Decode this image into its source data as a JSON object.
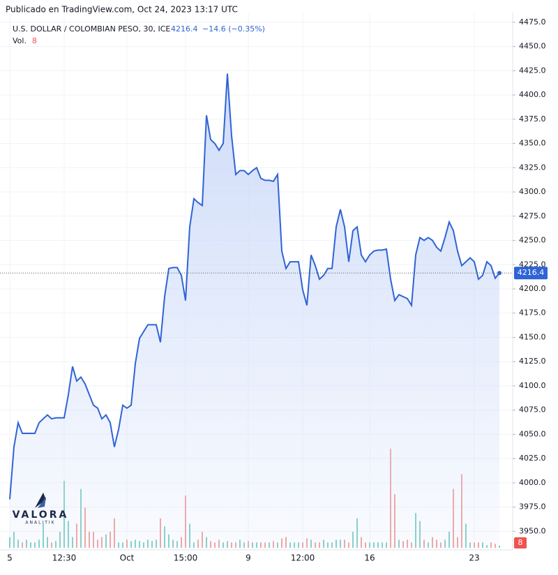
{
  "source": "Publicado en TradingView.com, Oct 24, 2023 13:17 UTC",
  "logo": {
    "name": "VALORA",
    "tagline": "ANALITIK"
  },
  "chart_data": {
    "type": "line",
    "change": "−14.6 (−0.35%)",
    "categories": [
      "5",
      null,
      null,
      null,
      null,
      null,
      null,
      null,
      null,
      null,
      null,
      null,
      null,
      "12:30",
      null,
      null,
      null,
      null,
      null,
      null,
      null,
      null,
      null,
      null,
      null,
      null,
      null,
      null,
      "Oct",
      null,
      null,
      null,
      null,
      null,
      null,
      null,
      null,
      null,
      null,
      null,
      null,
      null,
      "15:00",
      null,
      null,
      null,
      null,
      null,
      null,
      null,
      null,
      null,
      null,
      null,
      null,
      null,
      null,
      "9",
      null,
      null,
      null,
      null,
      null,
      null,
      null,
      null,
      null,
      null,
      null,
      null,
      "12:00",
      null,
      null,
      null,
      null,
      null,
      null,
      null,
      null,
      null,
      null,
      null,
      null,
      null,
      null,
      null,
      "16",
      null,
      null,
      null,
      null,
      null,
      null,
      null,
      null,
      null,
      null,
      null,
      null,
      null,
      null,
      null,
      null,
      null,
      null,
      null,
      null,
      null,
      null,
      null,
      null,
      "23",
      null,
      null,
      null,
      null,
      null,
      null
    ],
    "series": [
      {
        "name": "U.S. DOLLAR / COLOMBIAN PESO, 30, ICE",
        "color": "#2f63d6",
        "fill": "#dbe5fb",
        "values": [
          3983,
          4037,
          4062,
          4051,
          4051,
          4051,
          4051,
          4062,
          4066,
          4070,
          4066,
          4067,
          4067,
          4067,
          4091,
          4120,
          4105,
          4109,
          4102,
          4091,
          4080,
          4077,
          4066,
          4070,
          4062,
          4037,
          4055,
          4080,
          4077,
          4080,
          4123,
          4149,
          4156,
          4163,
          4163,
          4163,
          4145,
          4192,
          4221,
          4222,
          4222,
          4214,
          4188,
          4264,
          4293,
          4289,
          4286,
          4379,
          4354,
          4350,
          4343,
          4350,
          4422,
          4358,
          4318,
          4322,
          4322,
          4318,
          4322,
          4325,
          4314,
          4312,
          4312,
          4311,
          4318,
          4239,
          4221,
          4228,
          4228,
          4228,
          4199,
          4183,
          4235,
          4224,
          4210,
          4214,
          4221,
          4221,
          4264,
          4282,
          4264,
          4228,
          4260,
          4264,
          4235,
          4228,
          4235,
          4239,
          4240,
          4240,
          4241,
          4210,
          4188,
          4194,
          4192,
          4190,
          4183,
          4235,
          4253,
          4250,
          4253,
          4250,
          4243,
          4239,
          4253,
          4269,
          4260,
          4239,
          4224,
          4228,
          4232,
          4228,
          4210,
          4214,
          4228,
          4224,
          4211,
          4216.4
        ]
      },
      {
        "name": "Vol.",
        "axis": "y2",
        "up_color": "#7fcfc7",
        "down_color": "#f2a19f",
        "color": "#ef5350",
        "values": [
          40,
          60,
          30,
          20,
          30,
          20,
          20,
          30,
          90,
          40,
          20,
          25,
          60,
          250,
          100,
          40,
          90,
          220,
          150,
          60,
          60,
          30,
          40,
          50,
          60,
          110,
          20,
          20,
          30,
          25,
          30,
          25,
          20,
          30,
          25,
          30,
          110,
          80,
          50,
          30,
          25,
          40,
          195,
          90,
          20,
          30,
          60,
          40,
          25,
          20,
          30,
          20,
          25,
          20,
          20,
          30,
          20,
          25,
          20,
          20,
          20,
          20,
          20,
          25,
          20,
          35,
          40,
          20,
          20,
          20,
          20,
          35,
          30,
          20,
          20,
          30,
          20,
          20,
          30,
          30,
          30,
          20,
          60,
          110,
          40,
          20,
          20,
          20,
          20,
          20,
          20,
          370,
          200,
          30,
          25,
          30,
          20,
          130,
          100,
          30,
          20,
          40,
          30,
          20,
          30,
          60,
          220,
          40,
          275,
          90,
          20,
          20,
          20,
          20,
          10,
          20,
          15,
          8
        ]
      }
    ],
    "ylim": [
      3933,
      4485
    ],
    "yticks": [
      {
        "value": 3950,
        "label": "3950.0"
      },
      {
        "value": 3975,
        "label": "3975.0"
      },
      {
        "value": 4000,
        "label": "4000.0"
      },
      {
        "value": 4025,
        "label": "4025.0"
      },
      {
        "value": 4050,
        "label": "4050.0"
      },
      {
        "value": 4075,
        "label": "4075.0"
      },
      {
        "value": 4100,
        "label": "4100.0"
      },
      {
        "value": 4125,
        "label": "4125.0"
      },
      {
        "value": 4150,
        "label": "4150.0"
      },
      {
        "value": 4175,
        "label": "4175.0"
      },
      {
        "value": 4200,
        "label": "4200.0"
      },
      {
        "value": 4225,
        "label": "4225.0"
      },
      {
        "value": 4250,
        "label": "4250.0"
      },
      {
        "value": 4275,
        "label": "4275.0"
      },
      {
        "value": 4300,
        "label": "4300.0"
      },
      {
        "value": 4325,
        "label": "4325.0"
      },
      {
        "value": 4350,
        "label": "4350.0"
      },
      {
        "value": 4375,
        "label": "4375.0"
      },
      {
        "value": 4400,
        "label": "4400.0"
      },
      {
        "value": 4425,
        "label": "4425.0"
      },
      {
        "value": 4450,
        "label": "4450.0"
      },
      {
        "value": 4475,
        "label": "4475.0"
      }
    ],
    "y2lim": [
      0,
      2000
    ],
    "grid": true
  }
}
